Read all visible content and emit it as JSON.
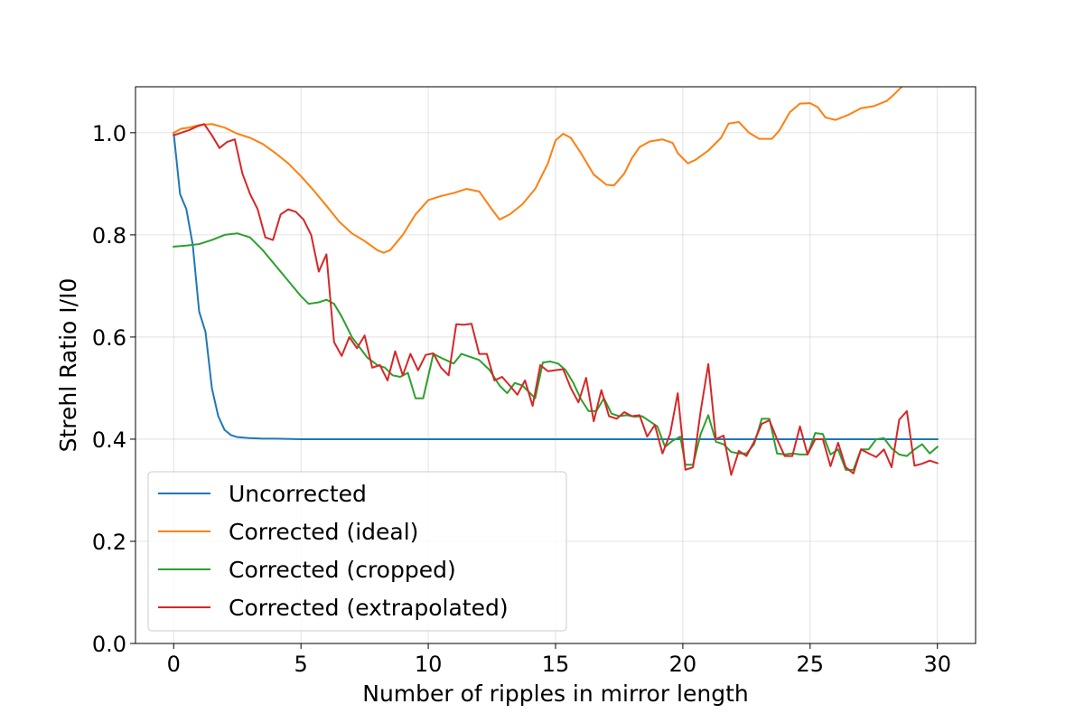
{
  "chart_data": {
    "type": "line",
    "title": "",
    "xlabel": "Number of ripples in mirror length",
    "ylabel": "Strehl Ratio I/I0",
    "xlim": [
      -1.5,
      31.5
    ],
    "ylim": [
      0.0,
      1.09
    ],
    "xticks": [
      0,
      5,
      10,
      15,
      20,
      25,
      30
    ],
    "yticks": [
      0.0,
      0.2,
      0.4,
      0.6,
      0.8,
      1.0
    ],
    "xtick_labels": [
      "0",
      "5",
      "10",
      "15",
      "20",
      "25",
      "30"
    ],
    "ytick_labels": [
      "0.0",
      "0.2",
      "0.4",
      "0.6",
      "0.8",
      "1.0"
    ],
    "grid": true,
    "legend_position": "lower-left",
    "series": [
      {
        "name": "Uncorrected",
        "color": "#1f77b4",
        "points": [
          [
            0,
            1.0
          ],
          [
            0.25,
            0.88
          ],
          [
            0.5,
            0.85
          ],
          [
            0.75,
            0.78
          ],
          [
            1.0,
            0.65
          ],
          [
            1.25,
            0.61
          ],
          [
            1.5,
            0.5
          ],
          [
            1.75,
            0.445
          ],
          [
            2.0,
            0.418
          ],
          [
            2.25,
            0.408
          ],
          [
            2.5,
            0.404
          ],
          [
            3,
            0.402
          ],
          [
            3.5,
            0.401
          ],
          [
            4,
            0.401
          ],
          [
            5,
            0.4
          ],
          [
            6,
            0.4
          ],
          [
            8,
            0.4
          ],
          [
            10,
            0.4
          ],
          [
            15,
            0.4
          ],
          [
            20,
            0.4
          ],
          [
            25,
            0.4
          ],
          [
            30,
            0.4
          ]
        ]
      },
      {
        "name": "Corrected (ideal)",
        "color": "#ff7f0e",
        "points": [
          [
            0,
            1.0
          ],
          [
            0.3,
            1.008
          ],
          [
            0.6,
            1.01
          ],
          [
            1.0,
            1.015
          ],
          [
            1.5,
            1.017
          ],
          [
            2,
            1.01
          ],
          [
            2.5,
            0.998
          ],
          [
            3,
            0.99
          ],
          [
            3.5,
            0.978
          ],
          [
            4,
            0.96
          ],
          [
            4.5,
            0.94
          ],
          [
            5,
            0.915
          ],
          [
            5.5,
            0.887
          ],
          [
            6,
            0.857
          ],
          [
            6.5,
            0.826
          ],
          [
            7,
            0.803
          ],
          [
            7.5,
            0.788
          ],
          [
            8,
            0.77
          ],
          [
            8.25,
            0.765
          ],
          [
            8.5,
            0.77
          ],
          [
            9,
            0.8
          ],
          [
            9.5,
            0.84
          ],
          [
            10,
            0.868
          ],
          [
            10.5,
            0.876
          ],
          [
            11,
            0.882
          ],
          [
            11.5,
            0.89
          ],
          [
            12,
            0.885
          ],
          [
            12.5,
            0.85
          ],
          [
            12.8,
            0.83
          ],
          [
            13.2,
            0.84
          ],
          [
            13.7,
            0.86
          ],
          [
            14.2,
            0.89
          ],
          [
            14.7,
            0.94
          ],
          [
            15.0,
            0.985
          ],
          [
            15.3,
            0.998
          ],
          [
            15.6,
            0.99
          ],
          [
            16,
            0.96
          ],
          [
            16.5,
            0.918
          ],
          [
            17,
            0.898
          ],
          [
            17.3,
            0.897
          ],
          [
            17.7,
            0.92
          ],
          [
            18,
            0.95
          ],
          [
            18.3,
            0.972
          ],
          [
            18.7,
            0.983
          ],
          [
            19.2,
            0.987
          ],
          [
            19.6,
            0.98
          ],
          [
            19.8,
            0.96
          ],
          [
            20,
            0.95
          ],
          [
            20.2,
            0.94
          ],
          [
            20.5,
            0.947
          ],
          [
            21,
            0.965
          ],
          [
            21.5,
            0.99
          ],
          [
            21.8,
            1.018
          ],
          [
            22.2,
            1.021
          ],
          [
            22.6,
            1.0
          ],
          [
            23,
            0.988
          ],
          [
            23.5,
            0.988
          ],
          [
            23.8,
            1.005
          ],
          [
            24.2,
            1.04
          ],
          [
            24.6,
            1.057
          ],
          [
            25,
            1.058
          ],
          [
            25.3,
            1.05
          ],
          [
            25.6,
            1.03
          ],
          [
            26,
            1.025
          ],
          [
            26.5,
            1.035
          ],
          [
            27,
            1.048
          ],
          [
            27.5,
            1.052
          ],
          [
            28,
            1.062
          ],
          [
            28.3,
            1.075
          ],
          [
            28.6,
            1.09
          ]
        ]
      },
      {
        "name": "Corrected (cropped)",
        "color": "#2ca02c",
        "points": [
          [
            0,
            0.777
          ],
          [
            0.5,
            0.779
          ],
          [
            1.0,
            0.782
          ],
          [
            1.5,
            0.79
          ],
          [
            2,
            0.8
          ],
          [
            2.5,
            0.803
          ],
          [
            3,
            0.795
          ],
          [
            3.5,
            0.77
          ],
          [
            4,
            0.74
          ],
          [
            4.5,
            0.71
          ],
          [
            5,
            0.68
          ],
          [
            5.3,
            0.665
          ],
          [
            5.7,
            0.668
          ],
          [
            6,
            0.673
          ],
          [
            6.3,
            0.665
          ],
          [
            6.6,
            0.64
          ],
          [
            7,
            0.6
          ],
          [
            7.3,
            0.58
          ],
          [
            7.6,
            0.56
          ],
          [
            8,
            0.545
          ],
          [
            8.3,
            0.54
          ],
          [
            8.6,
            0.525
          ],
          [
            8.9,
            0.522
          ],
          [
            9.2,
            0.53
          ],
          [
            9.5,
            0.48
          ],
          [
            9.8,
            0.48
          ],
          [
            10.2,
            0.567
          ],
          [
            10.6,
            0.557
          ],
          [
            11,
            0.548
          ],
          [
            11.3,
            0.567
          ],
          [
            11.6,
            0.562
          ],
          [
            12,
            0.555
          ],
          [
            12.4,
            0.536
          ],
          [
            12.8,
            0.505
          ],
          [
            13.1,
            0.49
          ],
          [
            13.4,
            0.51
          ],
          [
            13.7,
            0.505
          ],
          [
            14,
            0.49
          ],
          [
            14.2,
            0.48
          ],
          [
            14.5,
            0.55
          ],
          [
            14.8,
            0.552
          ],
          [
            15.1,
            0.548
          ],
          [
            15.4,
            0.535
          ],
          [
            15.7,
            0.51
          ],
          [
            16,
            0.478
          ],
          [
            16.3,
            0.455
          ],
          [
            16.6,
            0.455
          ],
          [
            16.9,
            0.48
          ],
          [
            17.2,
            0.45
          ],
          [
            17.5,
            0.445
          ],
          [
            17.8,
            0.447
          ],
          [
            18.1,
            0.444
          ],
          [
            18.4,
            0.445
          ],
          [
            18.7,
            0.435
          ],
          [
            19,
            0.425
          ],
          [
            19.3,
            0.385
          ],
          [
            19.6,
            0.397
          ],
          [
            19.9,
            0.405
          ],
          [
            20.1,
            0.35
          ],
          [
            20.4,
            0.35
          ],
          [
            20.7,
            0.41
          ],
          [
            21,
            0.447
          ],
          [
            21.3,
            0.395
          ],
          [
            21.6,
            0.39
          ],
          [
            21.9,
            0.375
          ],
          [
            22.2,
            0.372
          ],
          [
            22.5,
            0.372
          ],
          [
            22.8,
            0.39
          ],
          [
            23.1,
            0.44
          ],
          [
            23.4,
            0.44
          ],
          [
            23.7,
            0.372
          ],
          [
            24,
            0.37
          ],
          [
            24.3,
            0.372
          ],
          [
            24.6,
            0.37
          ],
          [
            24.9,
            0.37
          ],
          [
            25.2,
            0.412
          ],
          [
            25.5,
            0.41
          ],
          [
            25.8,
            0.37
          ],
          [
            26.1,
            0.38
          ],
          [
            26.4,
            0.34
          ],
          [
            26.7,
            0.34
          ],
          [
            27,
            0.38
          ],
          [
            27.3,
            0.38
          ],
          [
            27.6,
            0.4
          ],
          [
            27.9,
            0.402
          ],
          [
            28.2,
            0.382
          ],
          [
            28.5,
            0.37
          ],
          [
            28.8,
            0.367
          ],
          [
            29.1,
            0.38
          ],
          [
            29.4,
            0.39
          ],
          [
            29.7,
            0.372
          ],
          [
            30,
            0.385
          ]
        ]
      },
      {
        "name": "Corrected (extrapolated)",
        "color": "#d62728",
        "points": [
          [
            0,
            0.995
          ],
          [
            0.3,
            1.0
          ],
          [
            0.6,
            1.005
          ],
          [
            0.9,
            1.012
          ],
          [
            1.2,
            1.017
          ],
          [
            1.5,
            0.995
          ],
          [
            1.8,
            0.97
          ],
          [
            2.1,
            0.982
          ],
          [
            2.4,
            0.987
          ],
          [
            2.7,
            0.92
          ],
          [
            3.0,
            0.88
          ],
          [
            3.3,
            0.85
          ],
          [
            3.6,
            0.795
          ],
          [
            3.9,
            0.79
          ],
          [
            4.2,
            0.84
          ],
          [
            4.5,
            0.85
          ],
          [
            4.8,
            0.845
          ],
          [
            5.1,
            0.83
          ],
          [
            5.4,
            0.8
          ],
          [
            5.7,
            0.728
          ],
          [
            6.0,
            0.762
          ],
          [
            6.3,
            0.59
          ],
          [
            6.6,
            0.563
          ],
          [
            6.9,
            0.6
          ],
          [
            7.2,
            0.578
          ],
          [
            7.5,
            0.603
          ],
          [
            7.8,
            0.54
          ],
          [
            8.1,
            0.545
          ],
          [
            8.4,
            0.515
          ],
          [
            8.7,
            0.572
          ],
          [
            9.0,
            0.525
          ],
          [
            9.3,
            0.567
          ],
          [
            9.6,
            0.535
          ],
          [
            9.9,
            0.565
          ],
          [
            10.2,
            0.568
          ],
          [
            10.5,
            0.54
          ],
          [
            10.8,
            0.525
          ],
          [
            11.1,
            0.625
          ],
          [
            11.4,
            0.624
          ],
          [
            11.7,
            0.626
          ],
          [
            12.0,
            0.567
          ],
          [
            12.3,
            0.567
          ],
          [
            12.6,
            0.515
          ],
          [
            12.9,
            0.522
          ],
          [
            13.2,
            0.505
          ],
          [
            13.5,
            0.487
          ],
          [
            13.8,
            0.515
          ],
          [
            14.1,
            0.465
          ],
          [
            14.4,
            0.545
          ],
          [
            14.7,
            0.533
          ],
          [
            15.0,
            0.535
          ],
          [
            15.3,
            0.537
          ],
          [
            15.6,
            0.5
          ],
          [
            15.9,
            0.472
          ],
          [
            16.2,
            0.52
          ],
          [
            16.5,
            0.435
          ],
          [
            16.8,
            0.496
          ],
          [
            17.1,
            0.445
          ],
          [
            17.4,
            0.44
          ],
          [
            17.7,
            0.453
          ],
          [
            18.0,
            0.445
          ],
          [
            18.3,
            0.447
          ],
          [
            18.6,
            0.405
          ],
          [
            18.9,
            0.428
          ],
          [
            19.2,
            0.372
          ],
          [
            19.5,
            0.41
          ],
          [
            19.8,
            0.49
          ],
          [
            20.1,
            0.34
          ],
          [
            20.4,
            0.345
          ],
          [
            20.7,
            0.455
          ],
          [
            21.0,
            0.547
          ],
          [
            21.3,
            0.4
          ],
          [
            21.6,
            0.407
          ],
          [
            21.9,
            0.33
          ],
          [
            22.2,
            0.377
          ],
          [
            22.5,
            0.367
          ],
          [
            22.8,
            0.395
          ],
          [
            23.1,
            0.43
          ],
          [
            23.4,
            0.437
          ],
          [
            23.7,
            0.4
          ],
          [
            24.0,
            0.367
          ],
          [
            24.3,
            0.367
          ],
          [
            24.6,
            0.425
          ],
          [
            24.9,
            0.37
          ],
          [
            25.2,
            0.4
          ],
          [
            25.5,
            0.4
          ],
          [
            25.8,
            0.347
          ],
          [
            26.1,
            0.393
          ],
          [
            26.4,
            0.345
          ],
          [
            26.7,
            0.333
          ],
          [
            27.0,
            0.38
          ],
          [
            27.3,
            0.372
          ],
          [
            27.6,
            0.365
          ],
          [
            27.9,
            0.38
          ],
          [
            28.2,
            0.345
          ],
          [
            28.5,
            0.438
          ],
          [
            28.8,
            0.455
          ],
          [
            29.1,
            0.348
          ],
          [
            29.4,
            0.352
          ],
          [
            29.7,
            0.358
          ],
          [
            30.0,
            0.353
          ]
        ]
      }
    ]
  }
}
